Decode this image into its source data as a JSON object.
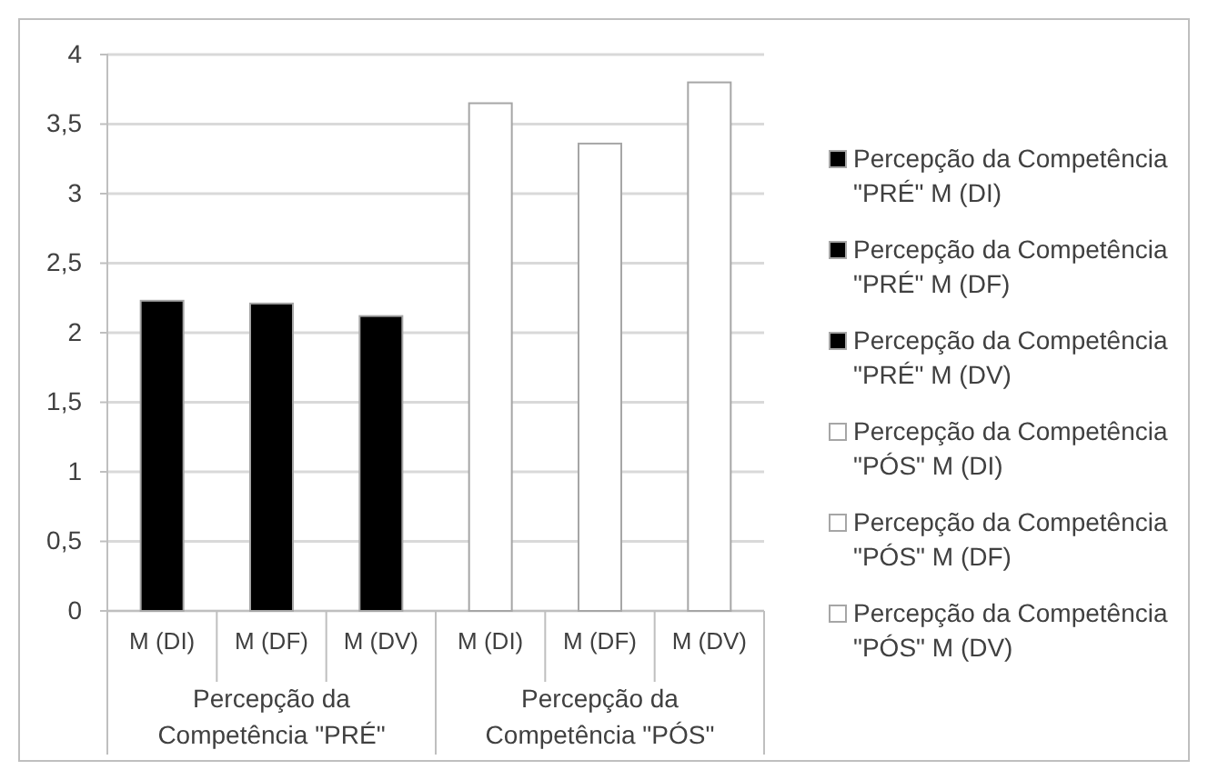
{
  "chart_data": {
    "type": "bar",
    "categories": [
      "M (DI)",
      "M (DF)",
      "M (DV)",
      "M (DI)",
      "M (DF)",
      "M (DV)"
    ],
    "series": [
      {
        "name": "Percepção da Competência \"PRÉ\" M (DI)",
        "color": "#000000",
        "values": [
          2.23,
          null,
          null,
          null,
          null,
          null
        ]
      },
      {
        "name": "Percepção da Competência \"PRÉ\" M (DF)",
        "color": "#000000",
        "values": [
          null,
          2.21,
          null,
          null,
          null,
          null
        ]
      },
      {
        "name": "Percepção da Competência \"PRÉ\" M (DV)",
        "color": "#000000",
        "values": [
          null,
          null,
          2.12,
          null,
          null,
          null
        ]
      },
      {
        "name": "Percepção da Competência \"PÓS\" M (DI)",
        "color": "#ffffff",
        "values": [
          null,
          null,
          null,
          3.65,
          null,
          null
        ]
      },
      {
        "name": "Percepção da Competência \"PÓS\" M (DF)",
        "color": "#ffffff",
        "values": [
          null,
          null,
          null,
          null,
          3.36,
          null
        ]
      },
      {
        "name": "Percepção da Competência \"PÓS\" M (DV)",
        "color": "#ffffff",
        "values": [
          null,
          null,
          null,
          null,
          null,
          3.8
        ]
      }
    ],
    "annotations": [
      "Percepção da Competência \"PRÉ\"",
      "Percepção da Competência \"PÓS\""
    ],
    "ylim": [
      0,
      4
    ],
    "yticks": [
      0,
      {
        "value": 0.5,
        "label": "0,5"
      },
      1,
      {
        "value": 1.5,
        "label": "1,5"
      },
      2,
      {
        "value": 2.5,
        "label": "2,5"
      },
      3,
      {
        "value": 3.5,
        "label": "3,5"
      },
      4
    ],
    "grid": "y",
    "legend": "right"
  }
}
